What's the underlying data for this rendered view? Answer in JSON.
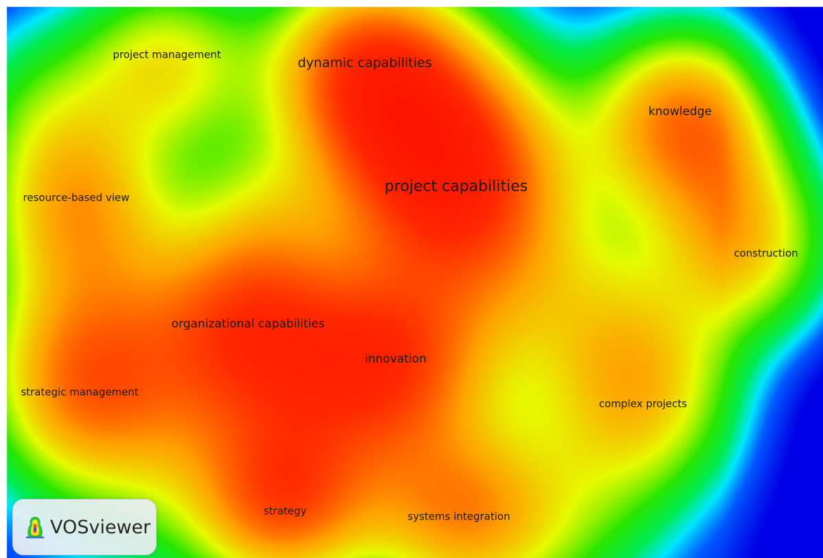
{
  "terms": [
    {
      "label": "project management",
      "density": 0.62
    },
    {
      "label": "dynamic capabilities",
      "density": 0.92
    },
    {
      "label": "knowledge",
      "density": 0.82
    },
    {
      "label": "resource-based view",
      "density": 0.62
    },
    {
      "label": "project capabilities",
      "density": 1.0
    },
    {
      "label": "construction",
      "density": 0.62
    },
    {
      "label": "organizational capabilities",
      "density": 0.88
    },
    {
      "label": "innovation",
      "density": 0.85
    },
    {
      "label": "strategic management",
      "density": 0.62
    },
    {
      "label": "complex projects",
      "density": 0.62
    },
    {
      "label": "strategy",
      "density": 0.72
    },
    {
      "label": "systems integration",
      "density": 0.72
    }
  ],
  "logo": {
    "text": "VOSviewer"
  }
}
